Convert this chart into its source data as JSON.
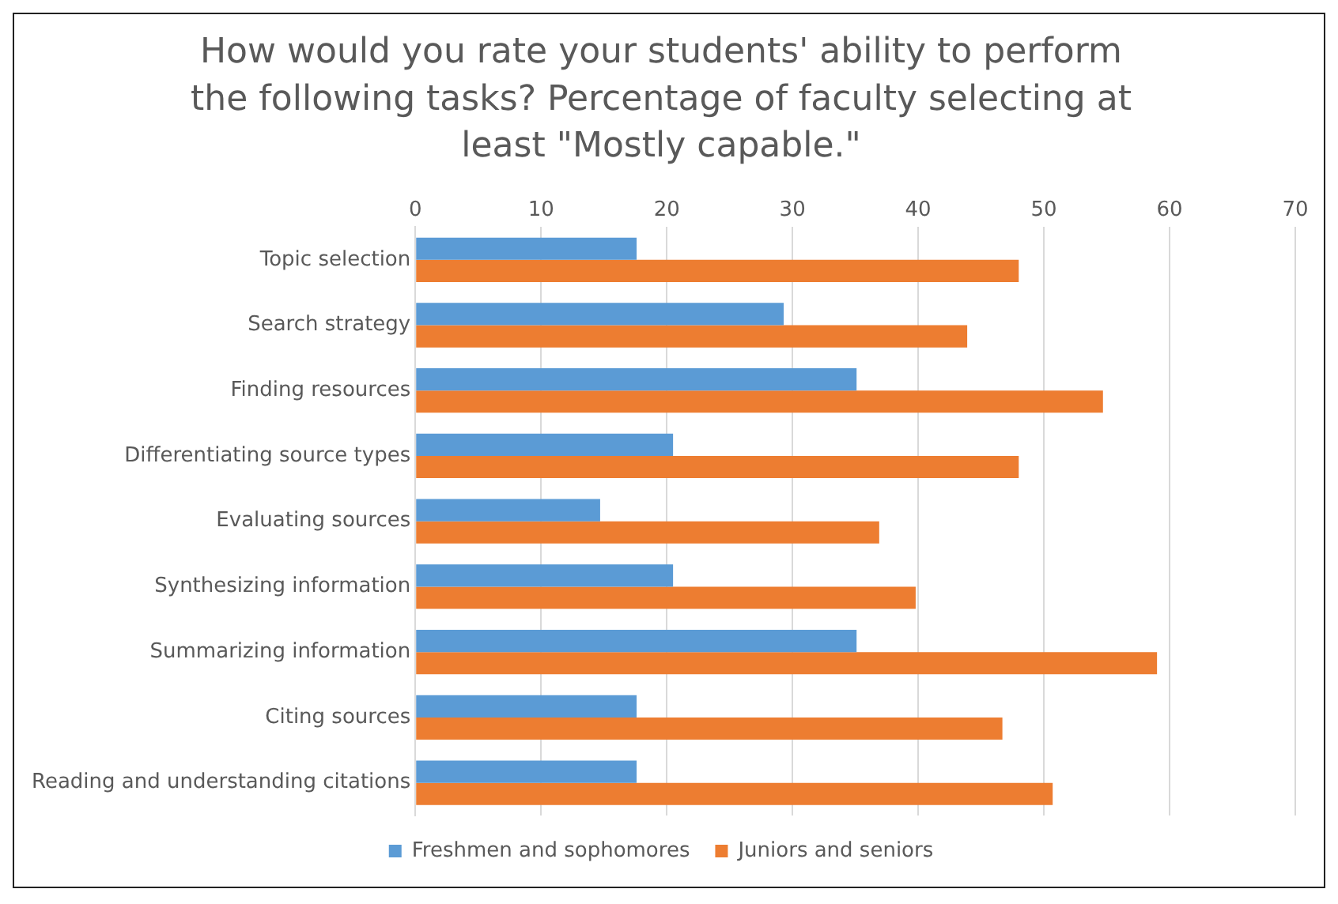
{
  "chart_data": {
    "type": "bar",
    "orientation": "horizontal",
    "title": "How would you rate your students' ability to perform the following tasks? Percentage of faculty selecting at least \"Mostly capable.\"",
    "categories": [
      "Topic selection",
      "Search strategy",
      "Finding resources",
      "Differentiating source types",
      "Evaluating sources",
      "Synthesizing information",
      "Summarizing information",
      "Citing sources",
      "Reading and understanding citations"
    ],
    "series": [
      {
        "name": "Freshmen and sophomores",
        "color": "#5b9bd5",
        "values": [
          17.6,
          29.3,
          35.1,
          20.5,
          14.7,
          20.5,
          35.1,
          17.6,
          17.6
        ]
      },
      {
        "name": "Juniors and seniors",
        "color": "#ed7d31",
        "values": [
          48.0,
          43.9,
          54.7,
          48.0,
          36.9,
          39.8,
          59.0,
          46.7,
          50.7
        ]
      }
    ],
    "xlim": [
      0,
      70
    ],
    "xticks": [
      0,
      10,
      20,
      30,
      40,
      50,
      60,
      70
    ],
    "grid": "x",
    "legend": "bottom"
  }
}
